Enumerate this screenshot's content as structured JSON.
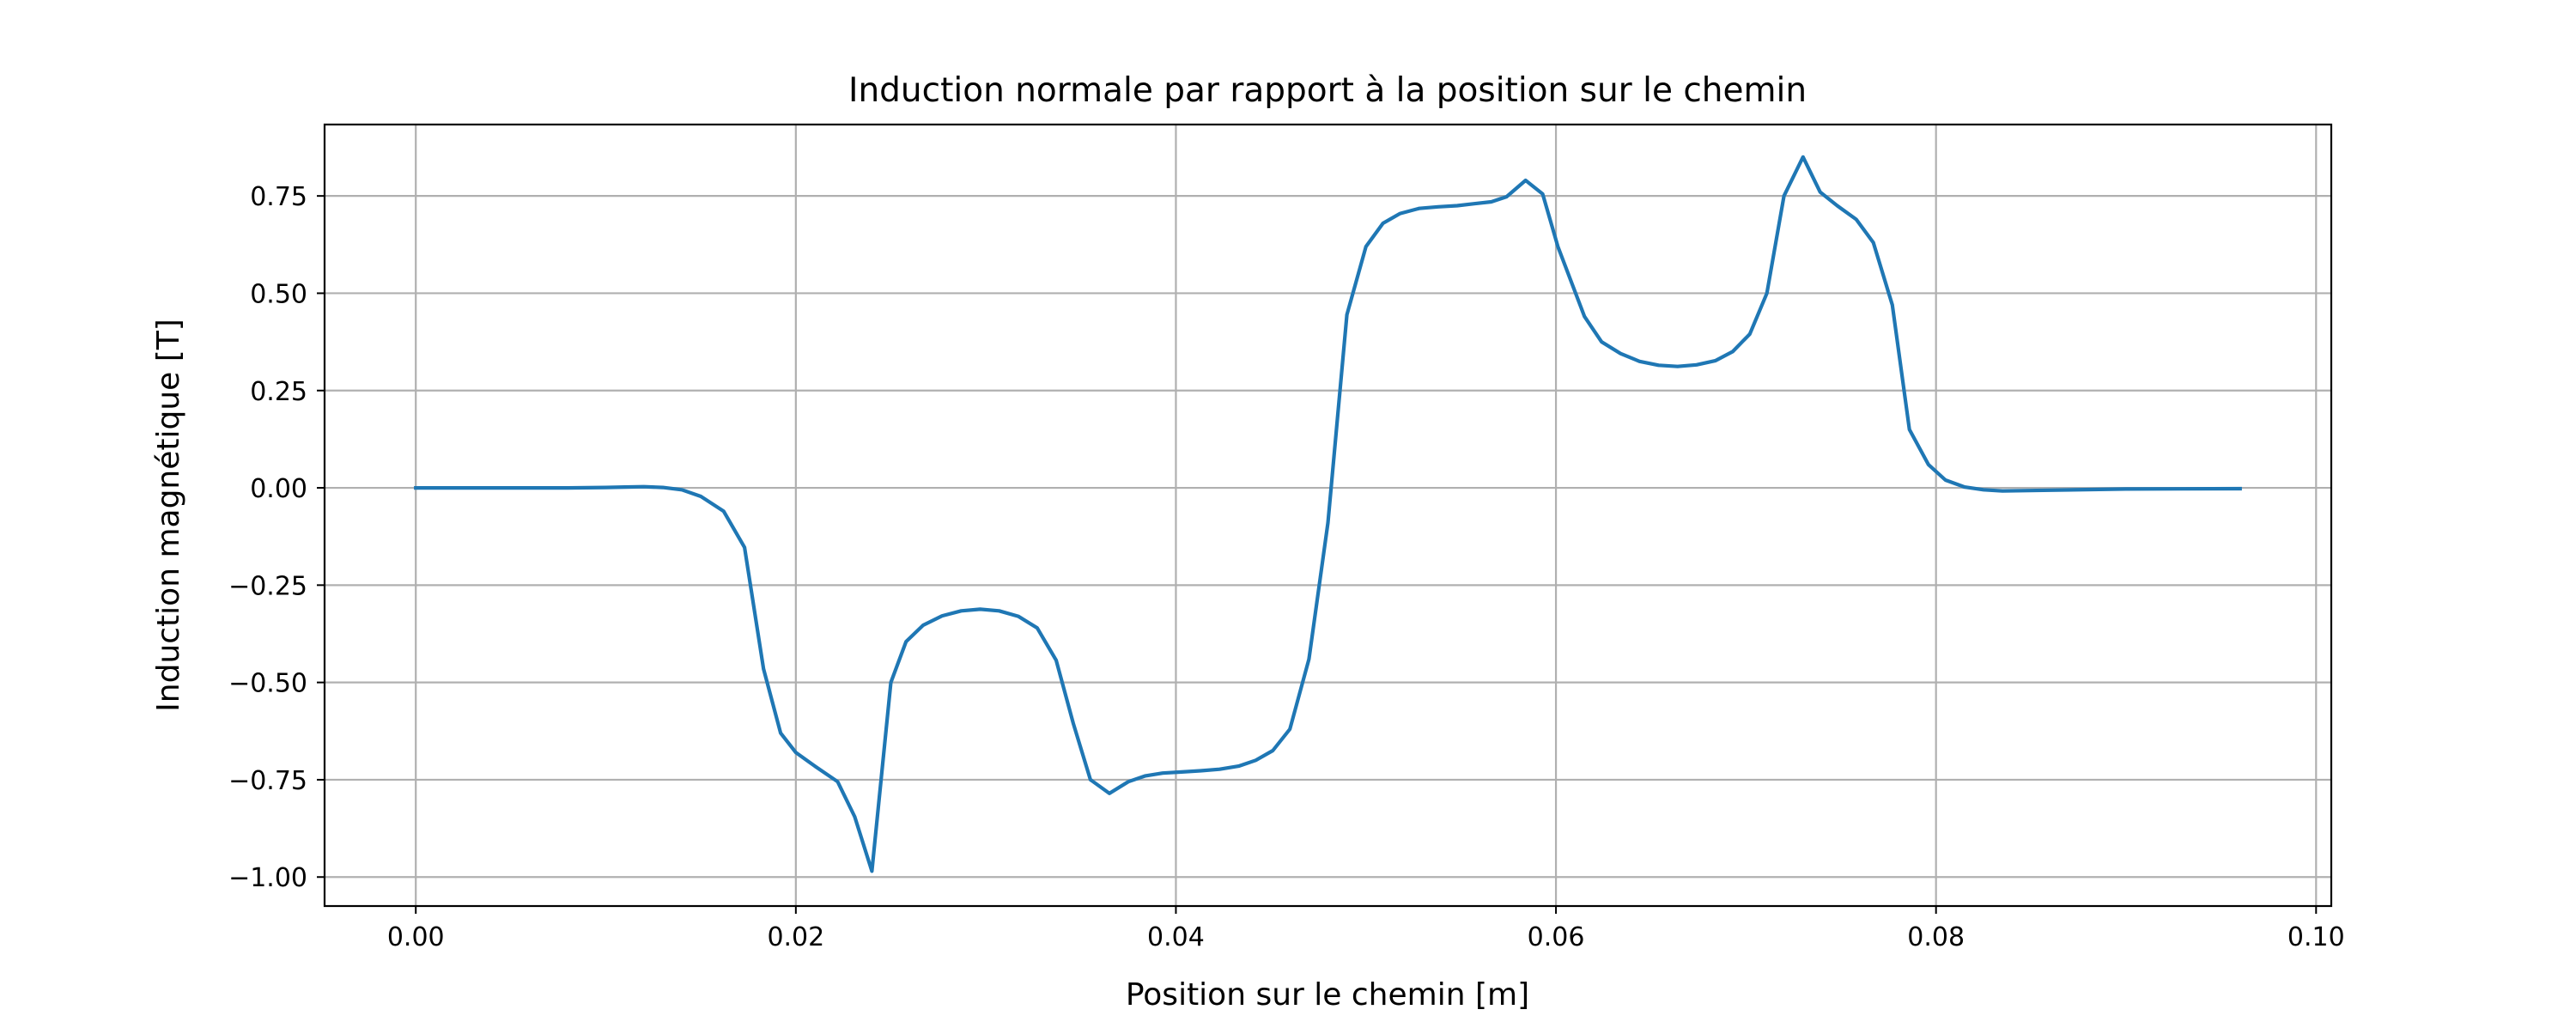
{
  "chart_data": {
    "type": "line",
    "title": "Induction normale par rapport à la position sur le chemin",
    "xlabel": "Position sur le chemin [m]",
    "ylabel": "Induction magnétique [T]",
    "xlim": [
      -0.0048,
      0.1008
    ],
    "ylim": [
      -1.0745,
      0.9335
    ],
    "x_ticks": [
      0.0,
      0.02,
      0.04,
      0.06,
      0.08,
      0.1
    ],
    "x_tick_labels": [
      "0.00",
      "0.02",
      "0.04",
      "0.06",
      "0.08",
      "0.10"
    ],
    "y_ticks": [
      -1.0,
      -0.75,
      -0.5,
      -0.25,
      0.0,
      0.25,
      0.5,
      0.75
    ],
    "y_tick_labels": [
      "−1.00",
      "−0.75",
      "−0.50",
      "−0.25",
      "0.00",
      "0.25",
      "0.50",
      "0.75"
    ],
    "grid": true,
    "series": [
      {
        "color": "#1f77b4",
        "x": [
          0.0,
          0.002,
          0.004,
          0.006,
          0.008,
          0.01,
          0.011,
          0.012,
          0.013,
          0.014,
          0.015,
          0.0162,
          0.0173,
          0.0183,
          0.0192,
          0.02,
          0.021,
          0.0222,
          0.0231,
          0.024,
          0.025,
          0.0258,
          0.0267,
          0.0277,
          0.0287,
          0.0297,
          0.0307,
          0.0317,
          0.0327,
          0.0337,
          0.0346,
          0.0355,
          0.0365,
          0.0375,
          0.0384,
          0.0393,
          0.0403,
          0.0413,
          0.0423,
          0.0433,
          0.0442,
          0.0451,
          0.046,
          0.047,
          0.048,
          0.049,
          0.05,
          0.0509,
          0.0518,
          0.0528,
          0.0538,
          0.0548,
          0.0557,
          0.0566,
          0.0574,
          0.0584,
          0.0593,
          0.0601,
          0.0615,
          0.0624,
          0.0634,
          0.0644,
          0.0654,
          0.0664,
          0.0674,
          0.0684,
          0.0693,
          0.0702,
          0.0711,
          0.072,
          0.073,
          0.0739,
          0.0748,
          0.0758,
          0.0767,
          0.0777,
          0.0786,
          0.0796,
          0.0805,
          0.0815,
          0.0825,
          0.0835,
          0.086,
          0.09,
          0.096
        ],
        "values": [
          0.0,
          0.0,
          0.0,
          0.0,
          0.0,
          0.001,
          0.002,
          0.003,
          0.001,
          -0.005,
          -0.022,
          -0.06,
          -0.153,
          -0.465,
          -0.63,
          -0.68,
          -0.715,
          -0.755,
          -0.845,
          -0.985,
          -0.5,
          -0.395,
          -0.353,
          -0.329,
          -0.316,
          -0.312,
          -0.316,
          -0.33,
          -0.36,
          -0.443,
          -0.605,
          -0.75,
          -0.785,
          -0.755,
          -0.74,
          -0.733,
          -0.73,
          -0.727,
          -0.723,
          -0.715,
          -0.7,
          -0.675,
          -0.62,
          -0.44,
          -0.09,
          0.445,
          0.62,
          0.68,
          0.705,
          0.718,
          0.722,
          0.725,
          0.73,
          0.735,
          0.748,
          0.79,
          0.755,
          0.62,
          0.44,
          0.375,
          0.345,
          0.325,
          0.315,
          0.312,
          0.316,
          0.327,
          0.35,
          0.395,
          0.5,
          0.75,
          0.85,
          0.76,
          0.725,
          0.69,
          0.63,
          0.47,
          0.15,
          0.06,
          0.02,
          0.002,
          -0.005,
          -0.008,
          -0.006,
          -0.003,
          -0.002
        ]
      }
    ]
  }
}
